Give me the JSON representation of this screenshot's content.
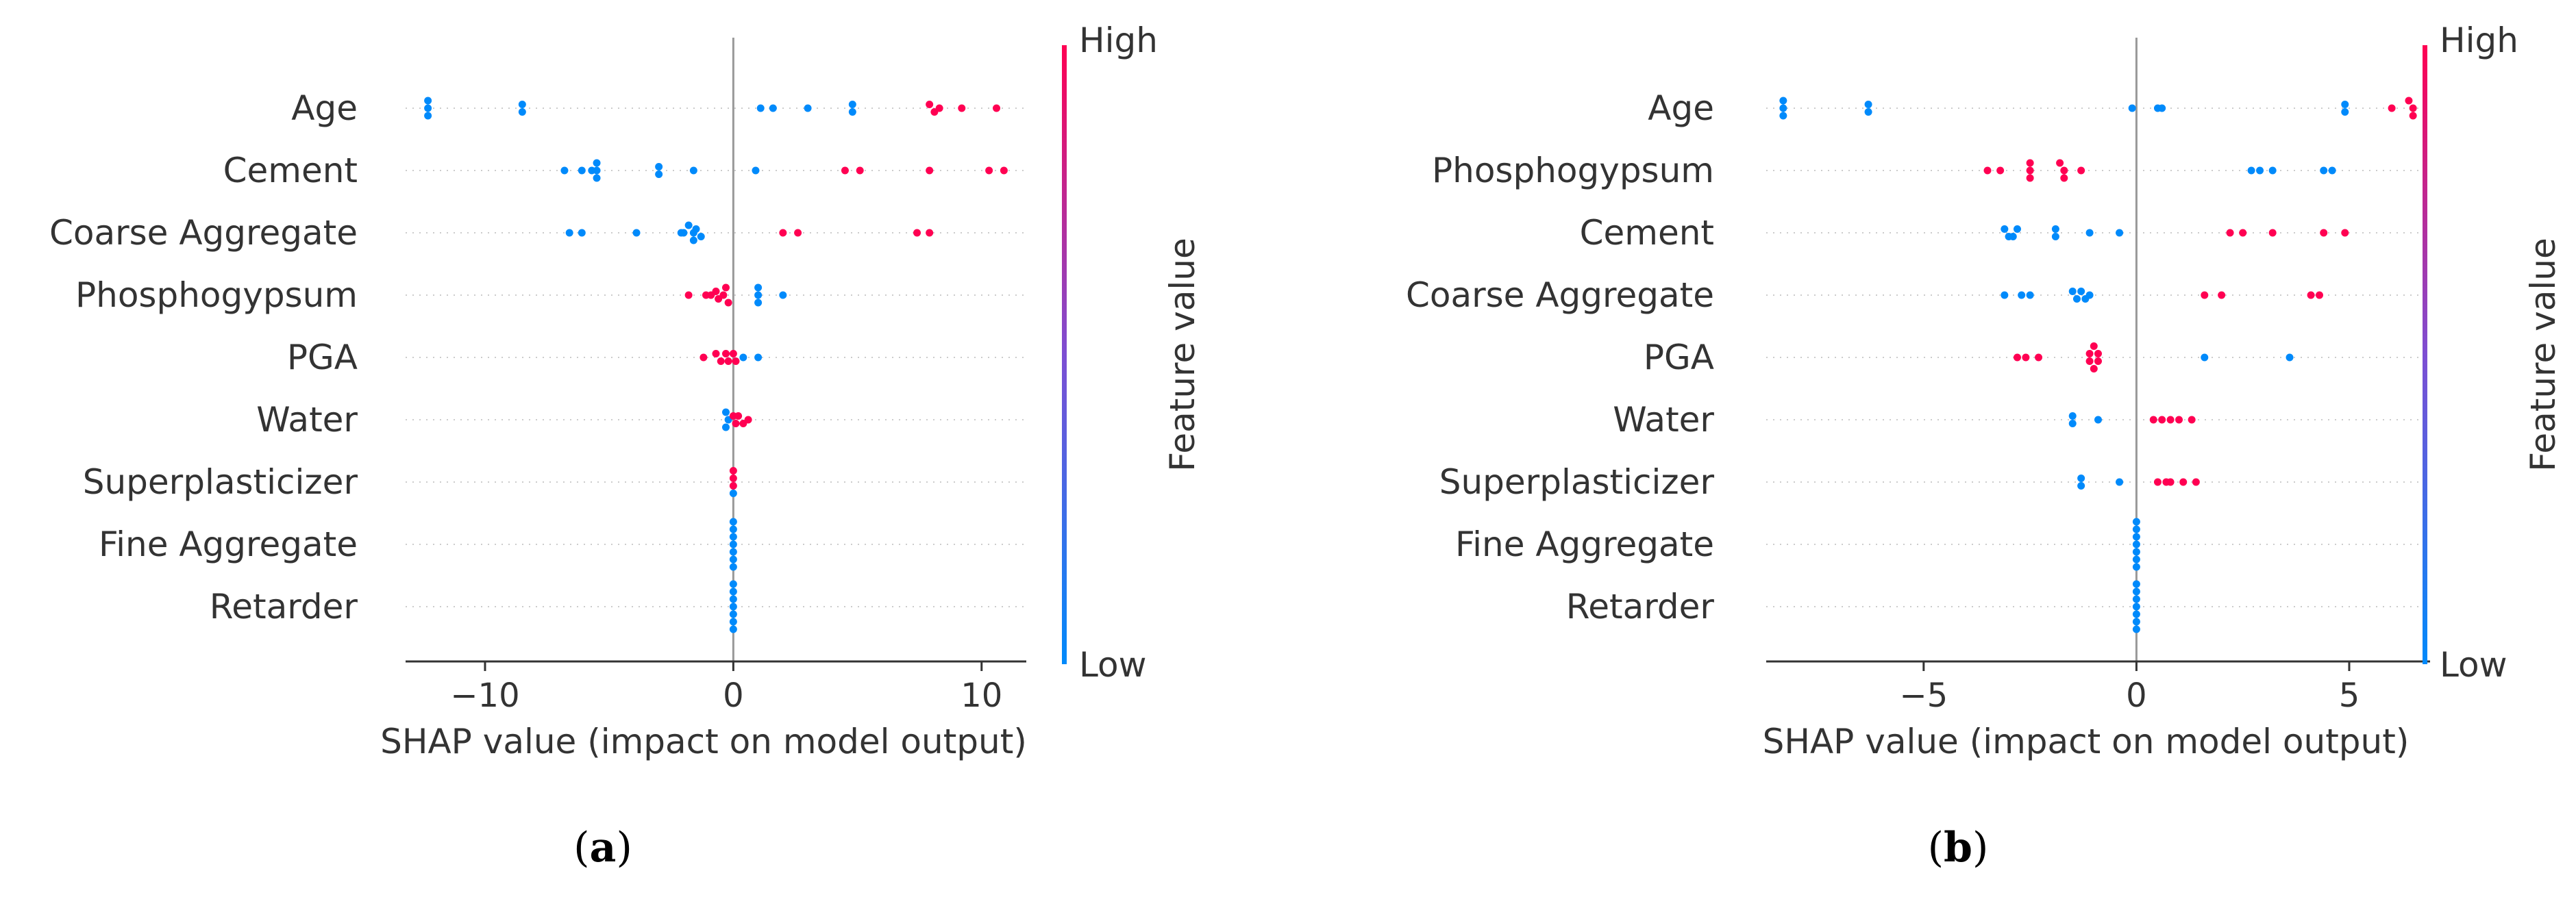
{
  "colors": {
    "low": "#008afb",
    "high": "#ff0052",
    "axis": "#333333",
    "zero_line": "#999999",
    "grid": "#cccccc"
  },
  "chart_data": [
    {
      "type": "scatter",
      "subtype": "shap-beeswarm",
      "panel_label": "a",
      "xlabel": "SHAP value (impact on model output)",
      "xlim": [
        -13.2,
        11.8
      ],
      "xticks": [
        -10,
        0,
        10
      ],
      "xtick_labels": [
        "−10",
        "0",
        "10"
      ],
      "colorbar": {
        "title": "Feature value",
        "high": "High",
        "low": "Low"
      },
      "features": [
        {
          "name": "Age",
          "points": [
            {
              "x": -12.3,
              "v": "low"
            },
            {
              "x": -12.3,
              "v": "low"
            },
            {
              "x": -12.3,
              "v": "low"
            },
            {
              "x": -8.5,
              "v": "low"
            },
            {
              "x": -8.5,
              "v": "low"
            },
            {
              "x": 1.1,
              "v": "low"
            },
            {
              "x": 1.6,
              "v": "low"
            },
            {
              "x": 3.0,
              "v": "low"
            },
            {
              "x": 4.8,
              "v": "low"
            },
            {
              "x": 4.8,
              "v": "low"
            },
            {
              "x": 7.9,
              "v": "high"
            },
            {
              "x": 8.1,
              "v": "high"
            },
            {
              "x": 8.3,
              "v": "high"
            },
            {
              "x": 9.2,
              "v": "high"
            },
            {
              "x": 10.6,
              "v": "high"
            }
          ]
        },
        {
          "name": "Cement",
          "points": [
            {
              "x": -6.8,
              "v": "low"
            },
            {
              "x": -6.1,
              "v": "low"
            },
            {
              "x": -5.7,
              "v": "low"
            },
            {
              "x": -5.5,
              "v": "low"
            },
            {
              "x": -5.5,
              "v": "low"
            },
            {
              "x": -5.5,
              "v": "low"
            },
            {
              "x": -3.0,
              "v": "low"
            },
            {
              "x": -3.0,
              "v": "low"
            },
            {
              "x": -1.6,
              "v": "low"
            },
            {
              "x": 0.9,
              "v": "low"
            },
            {
              "x": 4.5,
              "v": "high"
            },
            {
              "x": 5.1,
              "v": "high"
            },
            {
              "x": 7.9,
              "v": "high"
            },
            {
              "x": 10.3,
              "v": "high"
            },
            {
              "x": 10.9,
              "v": "high"
            }
          ]
        },
        {
          "name": "Coarse Aggregate",
          "points": [
            {
              "x": -6.6,
              "v": "low"
            },
            {
              "x": -6.1,
              "v": "low"
            },
            {
              "x": -3.9,
              "v": "low"
            },
            {
              "x": -2.1,
              "v": "low"
            },
            {
              "x": -1.8,
              "v": "low"
            },
            {
              "x": -1.5,
              "v": "low"
            },
            {
              "x": -2.0,
              "v": "low"
            },
            {
              "x": -1.6,
              "v": "low"
            },
            {
              "x": -1.3,
              "v": "low"
            },
            {
              "x": -1.6,
              "v": "low"
            },
            {
              "x": 2.0,
              "v": "high"
            },
            {
              "x": 2.6,
              "v": "high"
            },
            {
              "x": 7.4,
              "v": "high"
            },
            {
              "x": 7.9,
              "v": "high"
            }
          ]
        },
        {
          "name": "Phosphogypsum",
          "points": [
            {
              "x": -1.8,
              "v": "high"
            },
            {
              "x": -1.1,
              "v": "high"
            },
            {
              "x": -0.7,
              "v": "high"
            },
            {
              "x": -0.3,
              "v": "high"
            },
            {
              "x": -0.9,
              "v": "high"
            },
            {
              "x": -0.4,
              "v": "high"
            },
            {
              "x": -0.6,
              "v": "high"
            },
            {
              "x": -0.2,
              "v": "high"
            },
            {
              "x": 1.0,
              "v": "low"
            },
            {
              "x": 1.0,
              "v": "low"
            },
            {
              "x": 1.0,
              "v": "low"
            },
            {
              "x": 2.0,
              "v": "low"
            }
          ]
        },
        {
          "name": "PGA",
          "points": [
            {
              "x": -1.2,
              "v": "high"
            },
            {
              "x": -0.7,
              "v": "high"
            },
            {
              "x": -0.3,
              "v": "high"
            },
            {
              "x": 0.0,
              "v": "high"
            },
            {
              "x": -0.2,
              "v": "high"
            },
            {
              "x": -0.5,
              "v": "high"
            },
            {
              "x": 0.1,
              "v": "high"
            },
            {
              "x": 0.4,
              "v": "low"
            },
            {
              "x": 1.0,
              "v": "low"
            }
          ]
        },
        {
          "name": "Water",
          "points": [
            {
              "x": -0.3,
              "v": "low"
            },
            {
              "x": -0.2,
              "v": "low"
            },
            {
              "x": -0.3,
              "v": "low"
            },
            {
              "x": 0.0,
              "v": "high"
            },
            {
              "x": 0.2,
              "v": "high"
            },
            {
              "x": 0.4,
              "v": "high"
            },
            {
              "x": 0.6,
              "v": "high"
            },
            {
              "x": 0.1,
              "v": "high"
            }
          ]
        },
        {
          "name": "Superplasticizer",
          "points": [
            {
              "x": 0.0,
              "v": "high"
            },
            {
              "x": 0.0,
              "v": "high"
            },
            {
              "x": 0.0,
              "v": "high"
            },
            {
              "x": 0.0,
              "v": "low"
            }
          ]
        },
        {
          "name": "Fine Aggregate",
          "points": [
            {
              "x": 0.0,
              "v": "low"
            },
            {
              "x": 0.0,
              "v": "low"
            },
            {
              "x": 0.0,
              "v": "low"
            },
            {
              "x": 0.0,
              "v": "low"
            },
            {
              "x": 0.0,
              "v": "low"
            },
            {
              "x": 0.0,
              "v": "low"
            },
            {
              "x": 0.0,
              "v": "low"
            }
          ]
        },
        {
          "name": "Retarder",
          "points": [
            {
              "x": 0.0,
              "v": "low"
            },
            {
              "x": 0.0,
              "v": "low"
            },
            {
              "x": 0.0,
              "v": "low"
            },
            {
              "x": 0.0,
              "v": "low"
            },
            {
              "x": 0.0,
              "v": "low"
            },
            {
              "x": 0.0,
              "v": "low"
            },
            {
              "x": 0.0,
              "v": "low"
            }
          ]
        }
      ]
    },
    {
      "type": "scatter",
      "subtype": "shap-beeswarm",
      "panel_label": "b",
      "xlabel": "SHAP value (impact on model output)",
      "xlim": [
        -8.7,
        6.9
      ],
      "xticks": [
        -5,
        0,
        5
      ],
      "xtick_labels": [
        "−5",
        "0",
        "5"
      ],
      "colorbar": {
        "title": "Feature value",
        "high": "High",
        "low": "Low"
      },
      "features": [
        {
          "name": "Age",
          "points": [
            {
              "x": -8.3,
              "v": "low"
            },
            {
              "x": -8.3,
              "v": "low"
            },
            {
              "x": -8.3,
              "v": "low"
            },
            {
              "x": -6.3,
              "v": "low"
            },
            {
              "x": -6.3,
              "v": "low"
            },
            {
              "x": -0.1,
              "v": "low"
            },
            {
              "x": 0.5,
              "v": "low"
            },
            {
              "x": 0.6,
              "v": "low"
            },
            {
              "x": 4.9,
              "v": "low"
            },
            {
              "x": 4.9,
              "v": "low"
            },
            {
              "x": 6.0,
              "v": "high"
            },
            {
              "x": 6.4,
              "v": "high"
            },
            {
              "x": 6.5,
              "v": "high"
            },
            {
              "x": 6.5,
              "v": "high"
            }
          ]
        },
        {
          "name": "Phosphogypsum",
          "points": [
            {
              "x": -3.5,
              "v": "high"
            },
            {
              "x": -3.2,
              "v": "high"
            },
            {
              "x": -2.5,
              "v": "high"
            },
            {
              "x": -2.5,
              "v": "high"
            },
            {
              "x": -2.5,
              "v": "high"
            },
            {
              "x": -1.8,
              "v": "high"
            },
            {
              "x": -1.7,
              "v": "high"
            },
            {
              "x": -1.7,
              "v": "high"
            },
            {
              "x": -1.3,
              "v": "high"
            },
            {
              "x": 2.7,
              "v": "low"
            },
            {
              "x": 2.9,
              "v": "low"
            },
            {
              "x": 3.2,
              "v": "low"
            },
            {
              "x": 4.4,
              "v": "low"
            },
            {
              "x": 4.6,
              "v": "low"
            }
          ]
        },
        {
          "name": "Cement",
          "points": [
            {
              "x": -3.1,
              "v": "low"
            },
            {
              "x": -3.0,
              "v": "low"
            },
            {
              "x": -2.8,
              "v": "low"
            },
            {
              "x": -2.9,
              "v": "low"
            },
            {
              "x": -1.9,
              "v": "low"
            },
            {
              "x": -1.9,
              "v": "low"
            },
            {
              "x": -1.1,
              "v": "low"
            },
            {
              "x": -0.4,
              "v": "low"
            },
            {
              "x": 2.2,
              "v": "high"
            },
            {
              "x": 2.5,
              "v": "high"
            },
            {
              "x": 3.2,
              "v": "high"
            },
            {
              "x": 4.4,
              "v": "high"
            },
            {
              "x": 4.9,
              "v": "high"
            }
          ]
        },
        {
          "name": "Coarse Aggregate",
          "points": [
            {
              "x": -3.1,
              "v": "low"
            },
            {
              "x": -2.7,
              "v": "low"
            },
            {
              "x": -2.5,
              "v": "low"
            },
            {
              "x": -1.5,
              "v": "low"
            },
            {
              "x": -1.3,
              "v": "low"
            },
            {
              "x": -1.1,
              "v": "low"
            },
            {
              "x": -1.4,
              "v": "low"
            },
            {
              "x": -1.2,
              "v": "low"
            },
            {
              "x": 1.6,
              "v": "high"
            },
            {
              "x": 2.0,
              "v": "high"
            },
            {
              "x": 4.1,
              "v": "high"
            },
            {
              "x": 4.3,
              "v": "high"
            }
          ]
        },
        {
          "name": "PGA",
          "points": [
            {
              "x": -2.8,
              "v": "high"
            },
            {
              "x": -2.6,
              "v": "high"
            },
            {
              "x": -2.3,
              "v": "high"
            },
            {
              "x": -1.1,
              "v": "high"
            },
            {
              "x": -1.0,
              "v": "high"
            },
            {
              "x": -0.9,
              "v": "high"
            },
            {
              "x": -1.1,
              "v": "high"
            },
            {
              "x": -0.9,
              "v": "high"
            },
            {
              "x": -1.0,
              "v": "high"
            },
            {
              "x": 1.6,
              "v": "low"
            },
            {
              "x": 3.6,
              "v": "low"
            }
          ]
        },
        {
          "name": "Water",
          "points": [
            {
              "x": -1.5,
              "v": "low"
            },
            {
              "x": -1.5,
              "v": "low"
            },
            {
              "x": -0.9,
              "v": "low"
            },
            {
              "x": 0.4,
              "v": "high"
            },
            {
              "x": 0.6,
              "v": "high"
            },
            {
              "x": 0.8,
              "v": "high"
            },
            {
              "x": 1.0,
              "v": "high"
            },
            {
              "x": 1.3,
              "v": "high"
            }
          ]
        },
        {
          "name": "Superplasticizer",
          "points": [
            {
              "x": -1.3,
              "v": "low"
            },
            {
              "x": -1.3,
              "v": "low"
            },
            {
              "x": -0.4,
              "v": "low"
            },
            {
              "x": 0.5,
              "v": "high"
            },
            {
              "x": 0.7,
              "v": "high"
            },
            {
              "x": 0.8,
              "v": "high"
            },
            {
              "x": 1.1,
              "v": "high"
            },
            {
              "x": 1.4,
              "v": "high"
            }
          ]
        },
        {
          "name": "Fine Aggregate",
          "points": [
            {
              "x": 0.0,
              "v": "low"
            },
            {
              "x": 0.0,
              "v": "low"
            },
            {
              "x": 0.0,
              "v": "low"
            },
            {
              "x": 0.0,
              "v": "low"
            },
            {
              "x": 0.0,
              "v": "low"
            },
            {
              "x": 0.0,
              "v": "low"
            },
            {
              "x": 0.0,
              "v": "low"
            }
          ]
        },
        {
          "name": "Retarder",
          "points": [
            {
              "x": 0.0,
              "v": "low"
            },
            {
              "x": 0.0,
              "v": "low"
            },
            {
              "x": 0.0,
              "v": "low"
            },
            {
              "x": 0.0,
              "v": "low"
            },
            {
              "x": 0.0,
              "v": "low"
            },
            {
              "x": 0.0,
              "v": "low"
            },
            {
              "x": 0.0,
              "v": "low"
            }
          ]
        }
      ]
    }
  ]
}
